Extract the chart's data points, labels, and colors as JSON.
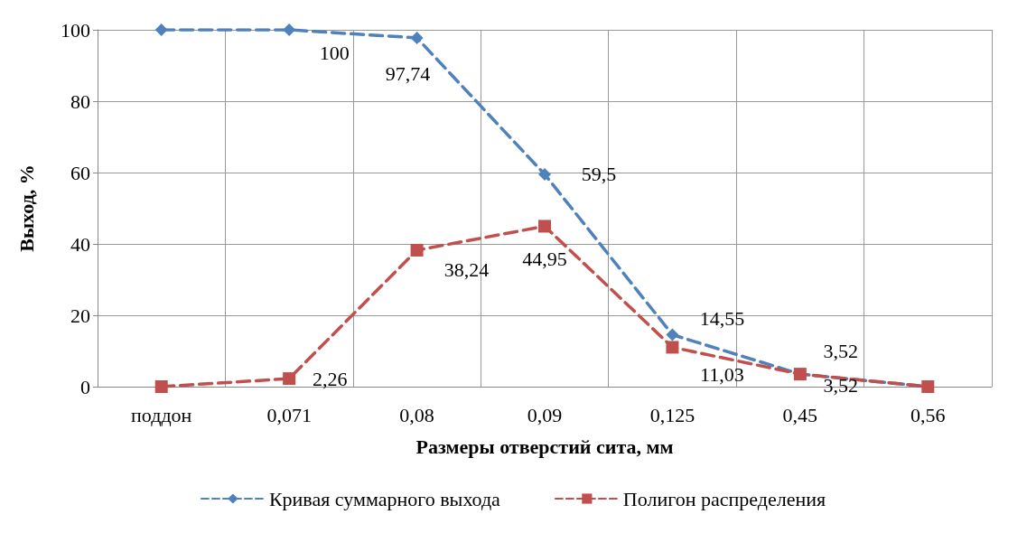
{
  "chart_data": {
    "type": "line",
    "xlabel": "Размеры отверстий сита, мм",
    "ylabel": "Выход, %",
    "categories": [
      "поддон",
      "0,071",
      "0,08",
      "0,09",
      "0,125",
      "0,45",
      "0,56"
    ],
    "series": [
      {
        "name": "Кривая суммарного выхода",
        "color": "#4f81bd",
        "marker": "diamond",
        "values": [
          100,
          100,
          97.74,
          59.5,
          14.55,
          3.52,
          0
        ],
        "value_labels": [
          null,
          "100",
          "97,74",
          "59,5",
          "14,55",
          "3,52",
          null
        ]
      },
      {
        "name": "Полигон распределения",
        "color": "#c0504d",
        "marker": "square",
        "values": [
          0,
          2.26,
          38.24,
          44.95,
          11.03,
          3.52,
          0
        ],
        "value_labels": [
          null,
          "2,26",
          "38,24",
          "44,95",
          "11,03",
          "3,52",
          null
        ]
      }
    ],
    "ylim": [
      0,
      100
    ],
    "yticks": [
      0,
      20,
      40,
      60,
      80,
      100
    ],
    "grid": true,
    "legend": "bottom",
    "line_style": "dashed"
  }
}
